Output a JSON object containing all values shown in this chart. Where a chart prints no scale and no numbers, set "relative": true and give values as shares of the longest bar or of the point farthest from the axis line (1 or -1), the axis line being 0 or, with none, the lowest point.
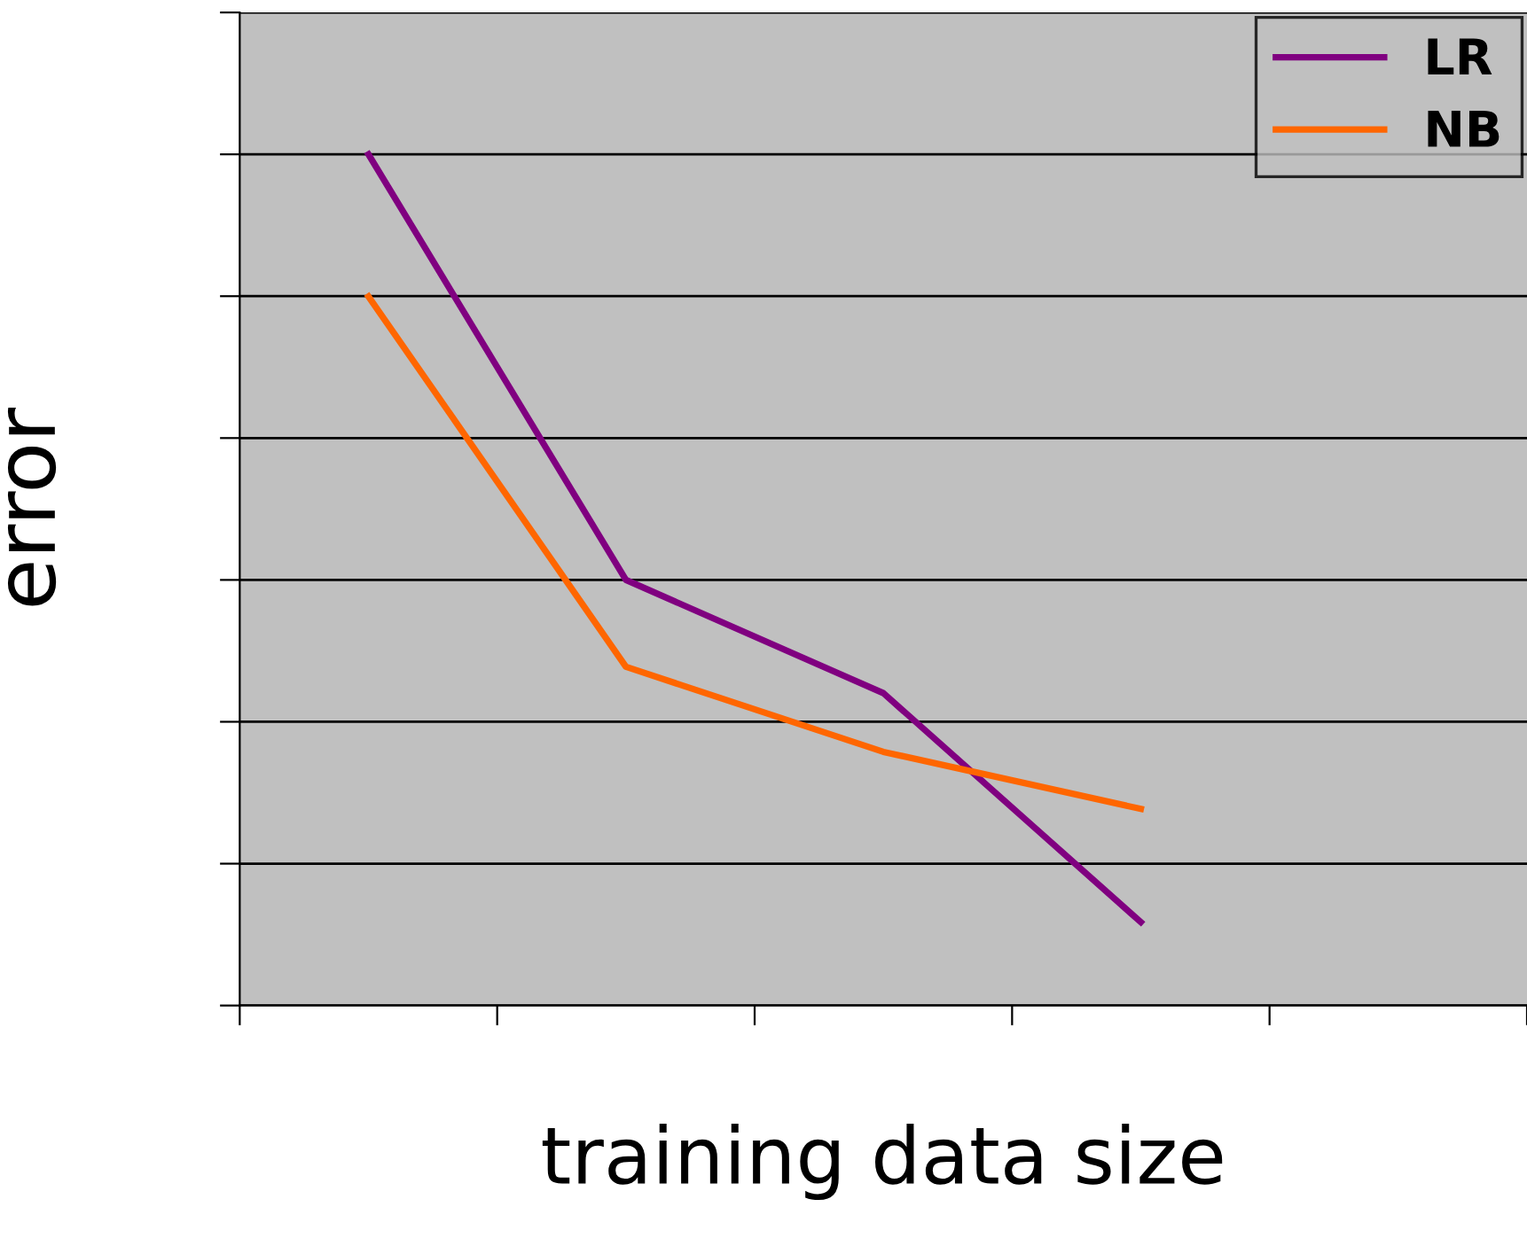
{
  "chart_data": {
    "type": "line",
    "relative": true,
    "xlabel": "training data size",
    "ylabel": "error",
    "categories": [
      null,
      null,
      null,
      null,
      null
    ],
    "series": [
      {
        "name": "LR",
        "color": "#800080",
        "values": [
          1,
          0.5,
          0.367,
          0.098,
          null
        ]
      },
      {
        "name": "NB",
        "color": "#ff6600",
        "values": [
          0.833,
          0.398,
          0.298,
          0.231,
          null
        ]
      }
    ],
    "grid": "y",
    "legend": "top right",
    "marker": "none",
    "line_style": "solid",
    "tick_labels": false
  }
}
